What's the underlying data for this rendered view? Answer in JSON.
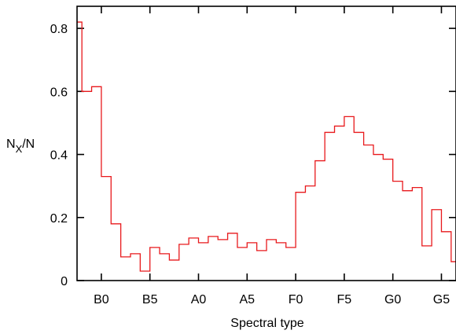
{
  "chart_data": {
    "type": "step",
    "xlabel": "Spectral type",
    "ylabel_main": "N",
    "ylabel_sub": "X",
    "ylabel_tail": "/N",
    "series_color": "#e8191c",
    "ylim": [
      0,
      0.87
    ],
    "xlim": [
      0,
      39
    ],
    "x_ticks": [
      {
        "label": "B0",
        "x": 2.5
      },
      {
        "label": "B5",
        "x": 7.5
      },
      {
        "label": "A0",
        "x": 12.5
      },
      {
        "label": "A5",
        "x": 17.5
      },
      {
        "label": "F0",
        "x": 22.5
      },
      {
        "label": "F5",
        "x": 27.5
      },
      {
        "label": "G0",
        "x": 32.5
      },
      {
        "label": "G5",
        "x": 37.5
      }
    ],
    "y_ticks": [
      {
        "label": "0",
        "y": 0
      },
      {
        "label": "0.2",
        "y": 0.2
      },
      {
        "label": "0.4",
        "y": 0.4
      },
      {
        "label": "0.6",
        "y": 0.6
      },
      {
        "label": "0.8",
        "y": 0.8
      }
    ],
    "bins_start": -0.5,
    "bin_width": 1,
    "values": [
      0.82,
      0.6,
      0.615,
      0.33,
      0.18,
      0.075,
      0.085,
      0.03,
      0.105,
      0.085,
      0.065,
      0.115,
      0.135,
      0.12,
      0.14,
      0.13,
      0.15,
      0.105,
      0.12,
      0.095,
      0.13,
      0.12,
      0.105,
      0.28,
      0.3,
      0.38,
      0.47,
      0.49,
      0.52,
      0.47,
      0.43,
      0.4,
      0.385,
      0.315,
      0.285,
      0.295,
      0.11,
      0.225,
      0.155,
      0.06
    ]
  }
}
